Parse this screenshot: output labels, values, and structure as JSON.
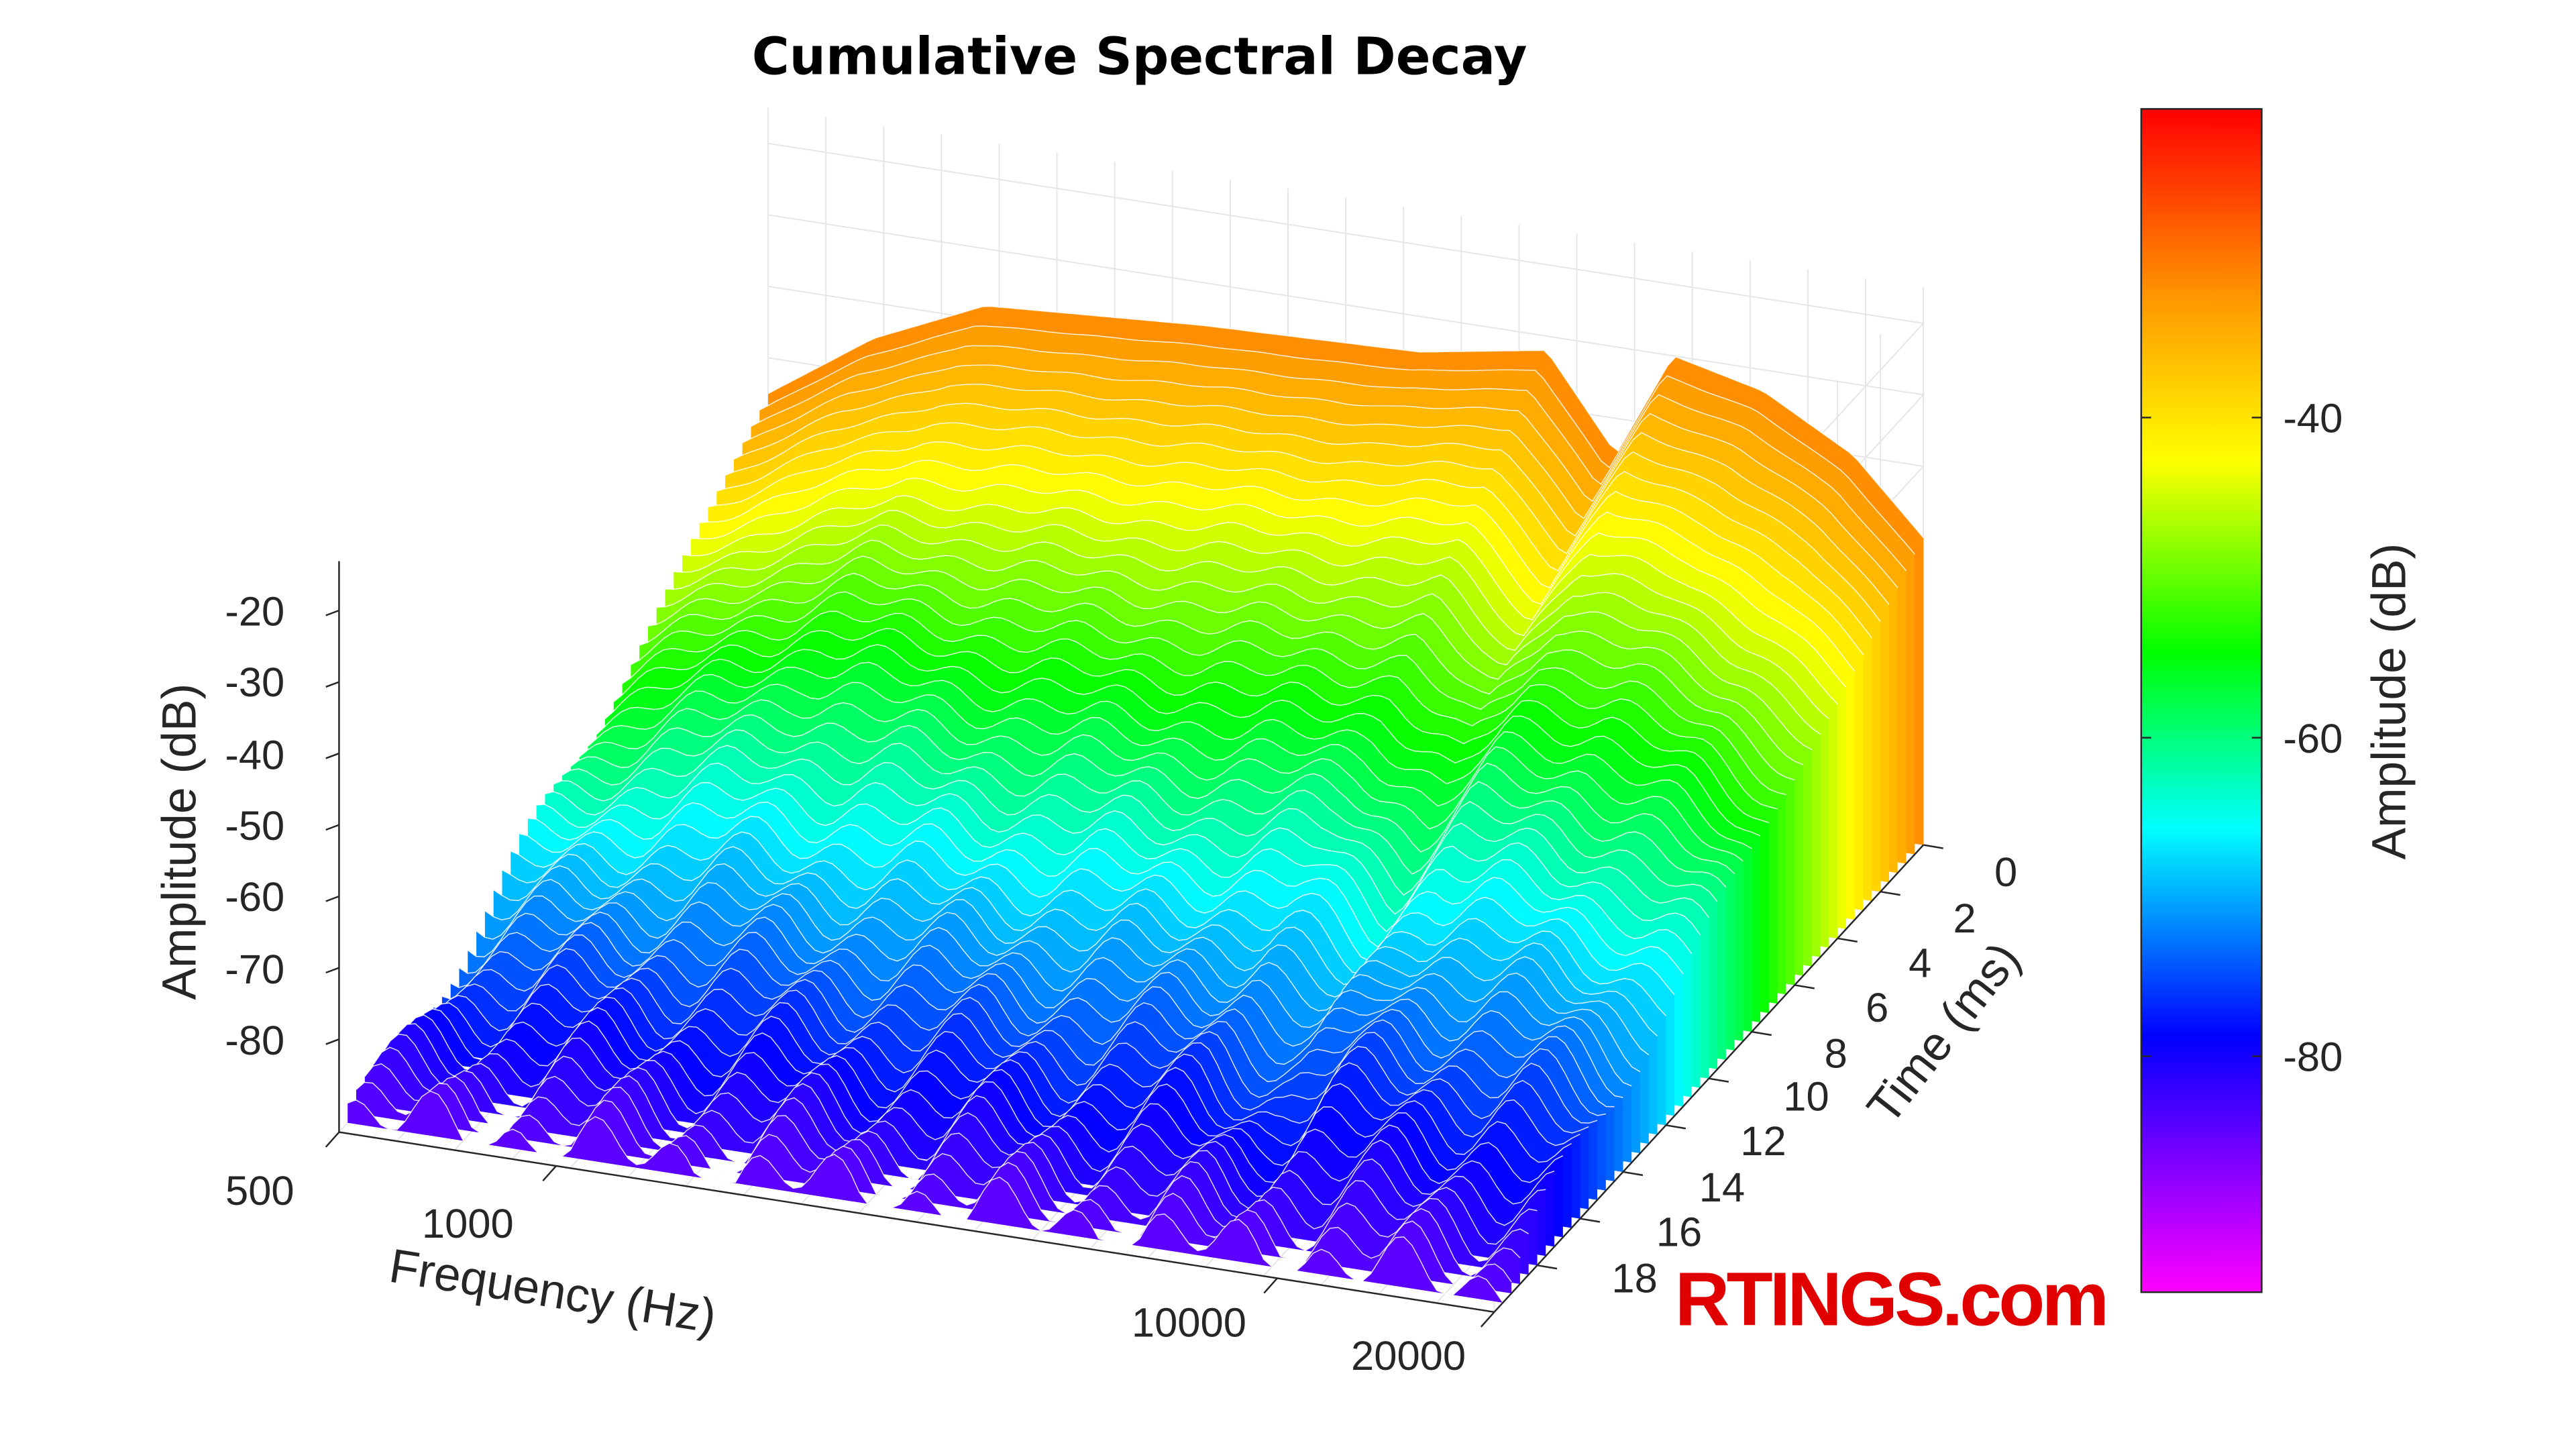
{
  "chart_data": {
    "type": "surface",
    "title": "Cumulative Spectral Decay",
    "xlabel": "Frequency (Hz)",
    "ylabel": "Time (ms)",
    "zlabel": "Amplitude (dB)",
    "xscale": "log",
    "xlim": [
      500,
      20000
    ],
    "ylim": [
      0,
      20
    ],
    "zlim": [
      -93,
      -20
    ],
    "x_ticks": [
      "500",
      "1000",
      "10000",
      "20000"
    ],
    "y_ticks": [
      "0",
      "2",
      "4",
      "6",
      "8",
      "10",
      "12",
      "14",
      "16",
      "18"
    ],
    "z_ticks": [
      "-20",
      "-30",
      "-40",
      "-50",
      "-60",
      "-70",
      "-80"
    ],
    "grid": true,
    "colorbar": {
      "label": "Amplitude (dB)",
      "range": [
        -95,
        -21
      ],
      "ticks": [
        "-40",
        "-60",
        "-80"
      ],
      "colormap": [
        "#ff00ff",
        "#8000ff",
        "#0000ff",
        "#00ffff",
        "#00ff00",
        "#ffff00",
        "#ff9900",
        "#ff0000"
      ],
      "colormap_stops": [
        -95,
        -87,
        -79,
        -66,
        -55,
        -43,
        -33,
        -21
      ]
    },
    "grid_frequencies": [
      500,
      700,
      1000,
      2000,
      4000,
      6000,
      7500,
      9000,
      12000,
      16000,
      20000
    ],
    "grid_times": [
      0,
      4,
      8,
      12,
      16,
      20
    ],
    "amplitude": [
      [
        -55,
        -45,
        -38,
        -36,
        -35,
        -32,
        -45,
        -30,
        -33,
        -40,
        -50
      ],
      [
        -65,
        -58,
        -52,
        -50,
        -48,
        -46,
        -55,
        -44,
        -46,
        -52,
        -60
      ],
      [
        -75,
        -68,
        -62,
        -63,
        -62,
        -60,
        -66,
        -58,
        -58,
        -62,
        -68
      ],
      [
        -82,
        -78,
        -75,
        -75,
        -74,
        -72,
        -78,
        -70,
        -70,
        -72,
        -76
      ],
      [
        -88,
        -86,
        -84,
        -84,
        -84,
        -82,
        -86,
        -80,
        -80,
        -80,
        -84
      ],
      [
        -92,
        -92,
        -92,
        -92,
        -92,
        -92,
        -92,
        -92,
        -92,
        -92,
        -92
      ]
    ]
  },
  "watermark": "RTINGS.com"
}
